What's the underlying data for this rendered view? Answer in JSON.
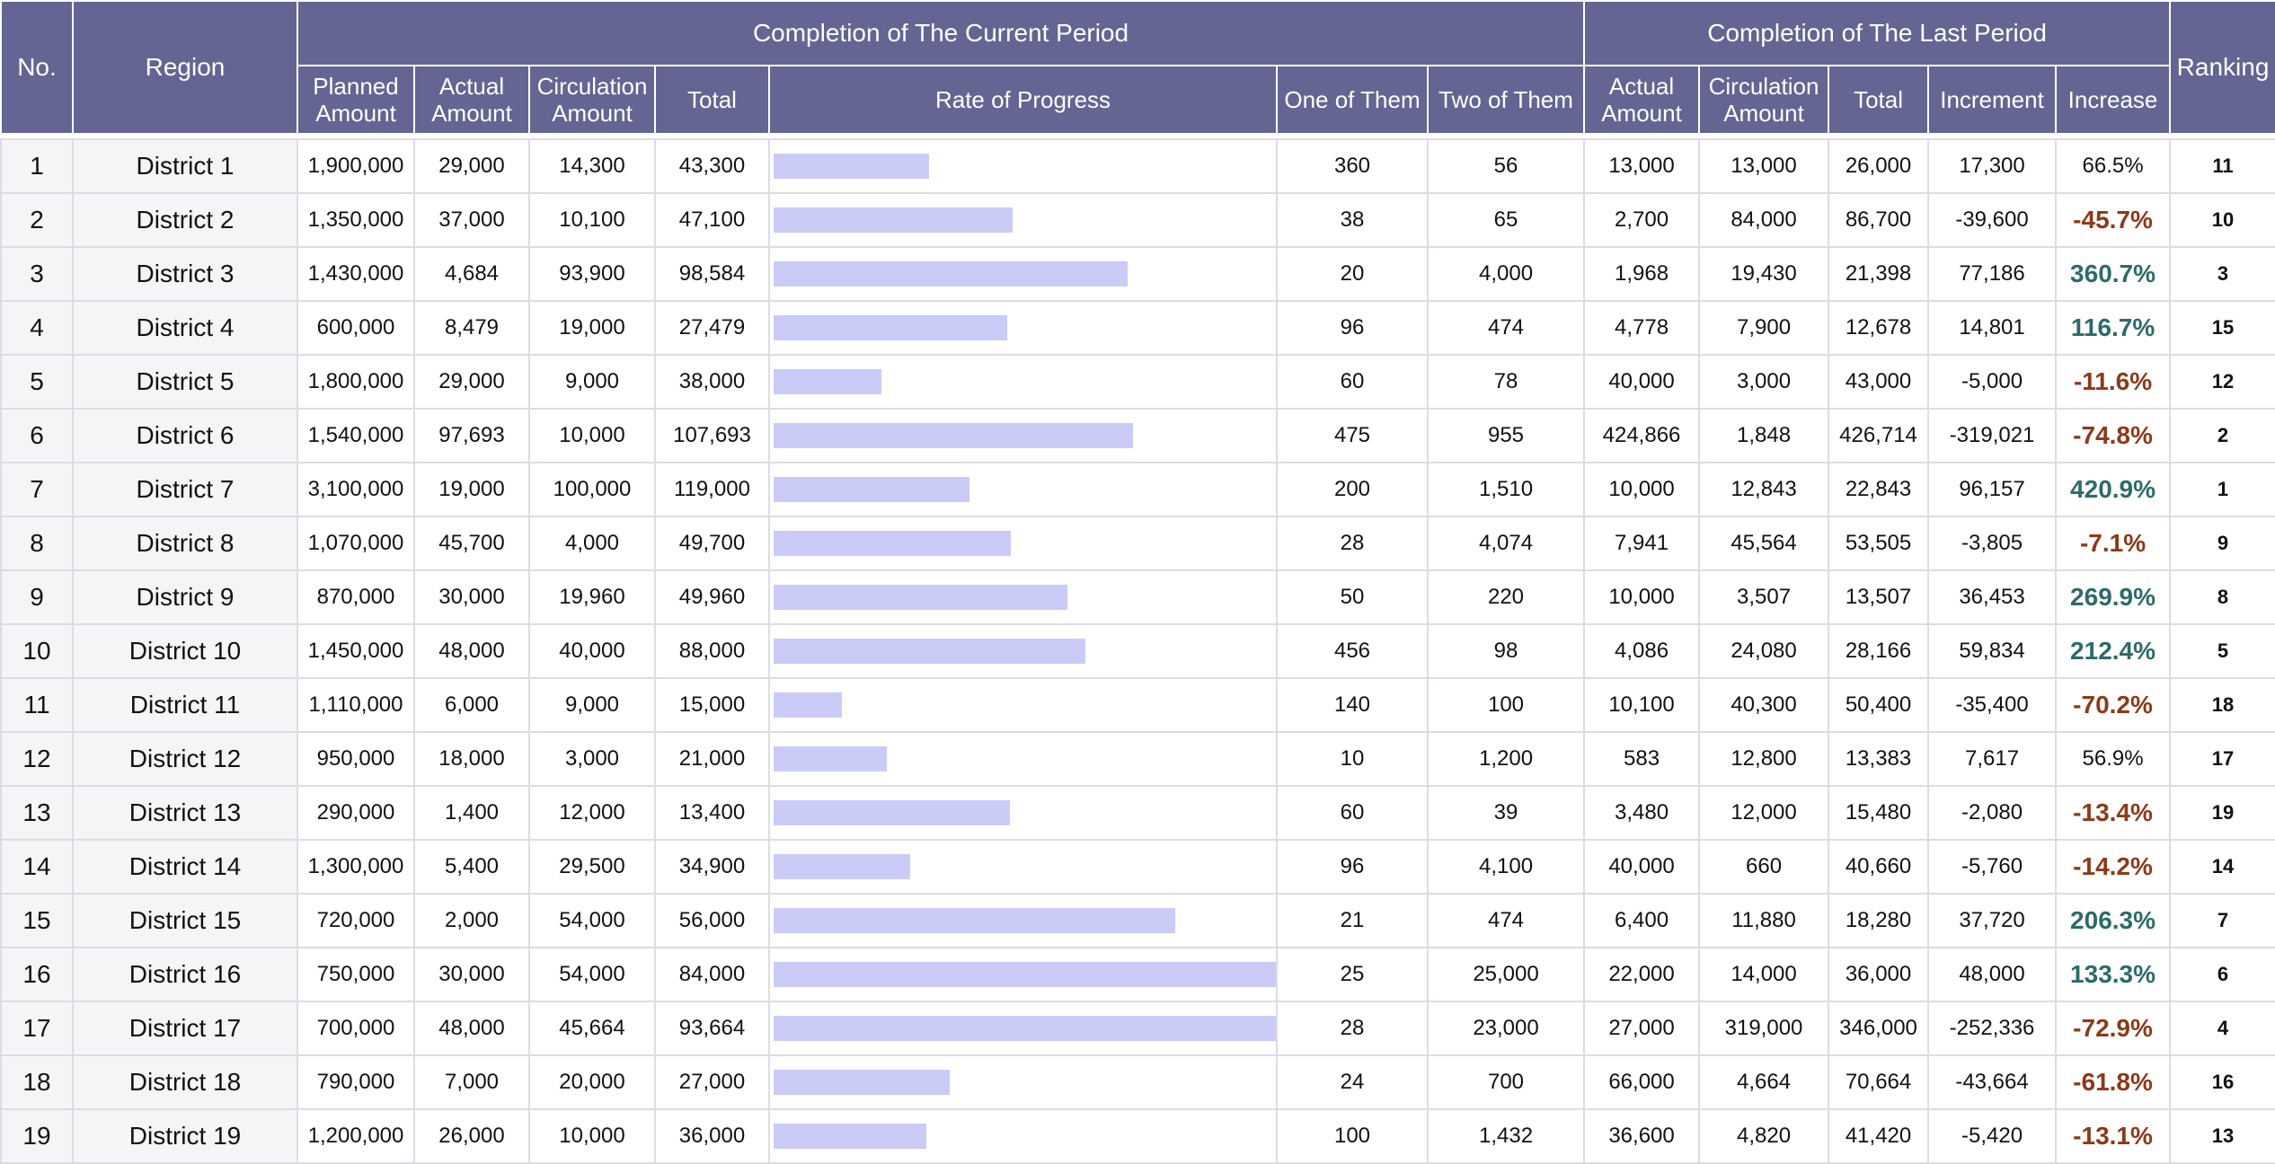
{
  "header": {
    "no": "No.",
    "region": "Region",
    "current_period": "Completion of The Current Period",
    "last_period": "Completion of The Last Period",
    "ranking": "Ranking",
    "planned_amount": [
      "Planned",
      "Amount"
    ],
    "actual_amount": [
      "Actual",
      "Amount"
    ],
    "circulation_amount": [
      "Circulation",
      "Amount"
    ],
    "total": "Total",
    "rate_of_progress": "Rate of Progress",
    "one_of_them": "One of Them",
    "two_of_them": "Two of Them",
    "last_actual_amount": [
      "Actual",
      "Amount"
    ],
    "last_circulation_amount": [
      "Circulation",
      "Amount"
    ],
    "last_total": "Total",
    "increment": "Increment",
    "increase": "Increase"
  },
  "progress_max": 140000,
  "rows": [
    {
      "no": "1",
      "region": "District 1",
      "planned": "1,900,000",
      "actual": "29,000",
      "circulation": "14,300",
      "total": "43,300",
      "progress": 43300,
      "one": "360",
      "two": "56",
      "last_actual": "13,000",
      "last_circulation": "13,000",
      "last_total": "26,000",
      "increment": "17,300",
      "increase": "66.5%",
      "increase_style": "plain",
      "ranking": "11"
    },
    {
      "no": "2",
      "region": "District 2",
      "planned": "1,350,000",
      "actual": "37,000",
      "circulation": "10,100",
      "total": "47,100",
      "progress": 66500,
      "one": "38",
      "two": "65",
      "last_actual": "2,700",
      "last_circulation": "84,000",
      "last_total": "86,700",
      "increment": "-39,600",
      "increase": "-45.7%",
      "increase_style": "neg",
      "ranking": "10"
    },
    {
      "no": "3",
      "region": "District 3",
      "planned": "1,430,000",
      "actual": "4,684",
      "circulation": "93,900",
      "total": "98,584",
      "progress": 98584,
      "one": "20",
      "two": "4,000",
      "last_actual": "1,968",
      "last_circulation": "19,430",
      "last_total": "21,398",
      "increment": "77,186",
      "increase": "360.7%",
      "increase_style": "pos",
      "ranking": "3"
    },
    {
      "no": "4",
      "region": "District 4",
      "planned": "600,000",
      "actual": "8,479",
      "circulation": "19,000",
      "total": "27,479",
      "progress": 65000,
      "one": "96",
      "two": "474",
      "last_actual": "4,778",
      "last_circulation": "7,900",
      "last_total": "12,678",
      "increment": "14,801",
      "increase": "116.7%",
      "increase_style": "pos",
      "ranking": "15"
    },
    {
      "no": "5",
      "region": "District 5",
      "planned": "1,800,000",
      "actual": "29,000",
      "circulation": "9,000",
      "total": "38,000",
      "progress": 30000,
      "one": "60",
      "two": "78",
      "last_actual": "40,000",
      "last_circulation": "3,000",
      "last_total": "43,000",
      "increment": "-5,000",
      "increase": "-11.6%",
      "increase_style": "neg",
      "ranking": "12"
    },
    {
      "no": "6",
      "region": "District 6",
      "planned": "1,540,000",
      "actual": "97,693",
      "circulation": "10,000",
      "total": "107,693",
      "progress": 100100,
      "one": "475",
      "two": "955",
      "last_actual": "424,866",
      "last_circulation": "1,848",
      "last_total": "426,714",
      "increment": "-319,021",
      "increase": "-74.8%",
      "increase_style": "neg",
      "ranking": "2"
    },
    {
      "no": "7",
      "region": "District 7",
      "planned": "3,100,000",
      "actual": "19,000",
      "circulation": "100,000",
      "total": "119,000",
      "progress": 54500,
      "one": "200",
      "two": "1,510",
      "last_actual": "10,000",
      "last_circulation": "12,843",
      "last_total": "22,843",
      "increment": "96,157",
      "increase": "420.9%",
      "increase_style": "pos",
      "ranking": "1"
    },
    {
      "no": "8",
      "region": "District 8",
      "planned": "1,070,000",
      "actual": "45,700",
      "circulation": "4,000",
      "total": "49,700",
      "progress": 66000,
      "one": "28",
      "two": "4,074",
      "last_actual": "7,941",
      "last_circulation": "45,564",
      "last_total": "53,505",
      "increment": "-3,805",
      "increase": "-7.1%",
      "increase_style": "neg",
      "ranking": "9"
    },
    {
      "no": "9",
      "region": "District 9",
      "planned": "870,000",
      "actual": "30,000",
      "circulation": "19,960",
      "total": "49,960",
      "progress": 82000,
      "one": "50",
      "two": "220",
      "last_actual": "10,000",
      "last_circulation": "3,507",
      "last_total": "13,507",
      "increment": "36,453",
      "increase": "269.9%",
      "increase_style": "pos",
      "ranking": "8"
    },
    {
      "no": "10",
      "region": "District 10",
      "planned": "1,450,000",
      "actual": "48,000",
      "circulation": "40,000",
      "total": "88,000",
      "progress": 86800,
      "one": "456",
      "two": "98",
      "last_actual": "4,086",
      "last_circulation": "24,080",
      "last_total": "28,166",
      "increment": "59,834",
      "increase": "212.4%",
      "increase_style": "pos",
      "ranking": "5"
    },
    {
      "no": "11",
      "region": "District 11",
      "planned": "1,110,000",
      "actual": "6,000",
      "circulation": "9,000",
      "total": "15,000",
      "progress": 19000,
      "one": "140",
      "two": "100",
      "last_actual": "10,100",
      "last_circulation": "40,300",
      "last_total": "50,400",
      "increment": "-35,400",
      "increase": "-70.2%",
      "increase_style": "neg",
      "ranking": "18"
    },
    {
      "no": "12",
      "region": "District 12",
      "planned": "950,000",
      "actual": "18,000",
      "circulation": "3,000",
      "total": "21,000",
      "progress": 31500,
      "one": "10",
      "two": "1,200",
      "last_actual": "583",
      "last_circulation": "12,800",
      "last_total": "13,383",
      "increment": "7,617",
      "increase": "56.9%",
      "increase_style": "plain",
      "ranking": "17"
    },
    {
      "no": "13",
      "region": "District 13",
      "planned": "290,000",
      "actual": "1,400",
      "circulation": "12,000",
      "total": "13,400",
      "progress": 65800,
      "one": "60",
      "two": "39",
      "last_actual": "3,480",
      "last_circulation": "12,000",
      "last_total": "15,480",
      "increment": "-2,080",
      "increase": "-13.4%",
      "increase_style": "neg",
      "ranking": "19"
    },
    {
      "no": "14",
      "region": "District 14",
      "planned": "1,300,000",
      "actual": "5,400",
      "circulation": "29,500",
      "total": "34,900",
      "progress": 38000,
      "one": "96",
      "two": "4,100",
      "last_actual": "40,000",
      "last_circulation": "660",
      "last_total": "40,660",
      "increment": "-5,760",
      "increase": "-14.2%",
      "increase_style": "neg",
      "ranking": "14"
    },
    {
      "no": "15",
      "region": "District 15",
      "planned": "720,000",
      "actual": "2,000",
      "circulation": "54,000",
      "total": "56,000",
      "progress": 112000,
      "one": "21",
      "two": "474",
      "last_actual": "6,400",
      "last_circulation": "11,880",
      "last_total": "18,280",
      "increment": "37,720",
      "increase": "206.3%",
      "increase_style": "pos",
      "ranking": "7"
    },
    {
      "no": "16",
      "region": "District 16",
      "planned": "750,000",
      "actual": "30,000",
      "circulation": "54,000",
      "total": "84,000",
      "progress": 140000,
      "one": "25",
      "two": "25,000",
      "last_actual": "22,000",
      "last_circulation": "14,000",
      "last_total": "36,000",
      "increment": "48,000",
      "increase": "133.3%",
      "increase_style": "pos",
      "ranking": "6"
    },
    {
      "no": "17",
      "region": "District 17",
      "planned": "700,000",
      "actual": "48,000",
      "circulation": "45,664",
      "total": "93,664",
      "progress": 140000,
      "one": "28",
      "two": "23,000",
      "last_actual": "27,000",
      "last_circulation": "319,000",
      "last_total": "346,000",
      "increment": "-252,336",
      "increase": "-72.9%",
      "increase_style": "neg",
      "ranking": "4"
    },
    {
      "no": "18",
      "region": "District 18",
      "planned": "790,000",
      "actual": "7,000",
      "circulation": "20,000",
      "total": "27,000",
      "progress": 49000,
      "one": "24",
      "two": "700",
      "last_actual": "66,000",
      "last_circulation": "4,664",
      "last_total": "70,664",
      "increment": "-43,664",
      "increase": "-61.8%",
      "increase_style": "neg",
      "ranking": "16"
    },
    {
      "no": "19",
      "region": "District 19",
      "planned": "1,200,000",
      "actual": "26,000",
      "circulation": "10,000",
      "total": "36,000",
      "progress": 42500,
      "one": "100",
      "two": "1,432",
      "last_actual": "36,600",
      "last_circulation": "4,820",
      "last_total": "41,420",
      "increment": "-5,420",
      "increase": "-13.1%",
      "increase_style": "neg",
      "ranking": "13"
    }
  ],
  "colors": {
    "header_bg": "#646592",
    "bar": "#cbcbf8",
    "increase_positive": "#2e6a6a",
    "increase_negative": "#8b3a1a"
  }
}
